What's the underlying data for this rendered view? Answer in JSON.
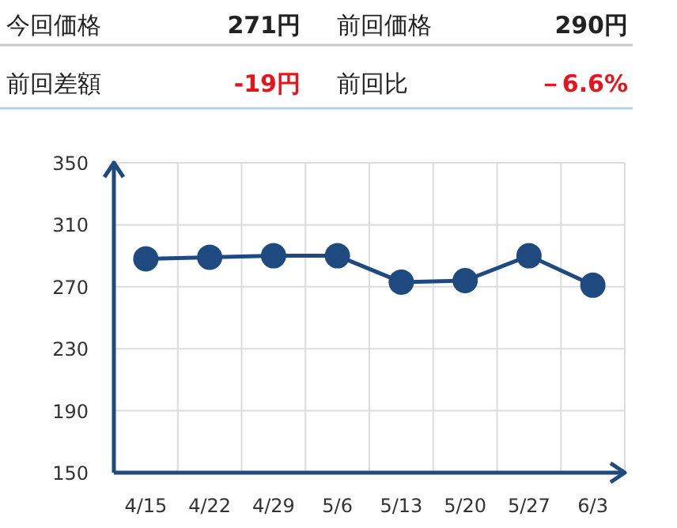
{
  "chart_data": [
    {
      "type": "other",
      "annotations": [
        "今回価格",
        "271円",
        "前回価格",
        "290円",
        "前回差額",
        "-19円",
        "前回比",
        "－6.6%"
      ]
    },
    {
      "type": "line",
      "categories": [
        "4/15",
        "4/22",
        "4/29",
        "5/6",
        "5/13",
        "5/20",
        "5/27",
        "6/3"
      ],
      "series": [
        {
          "color": "#1f4a80",
          "values": [
            288,
            289,
            290,
            290,
            273,
            274,
            290,
            271
          ]
        }
      ],
      "ylim": [
        150,
        350
      ],
      "yticks": [
        150,
        190,
        230,
        270,
        310,
        350
      ],
      "grid": true,
      "marker": "circle",
      "line_style": "solid"
    }
  ]
}
